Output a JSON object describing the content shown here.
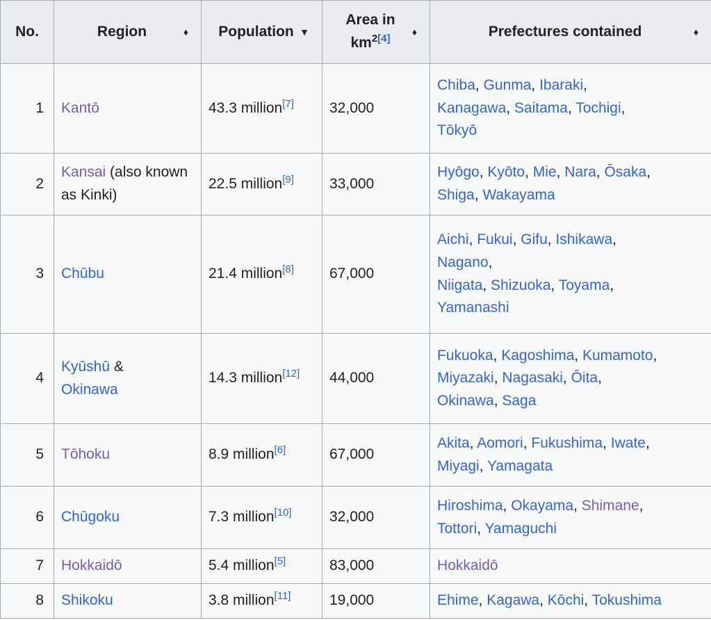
{
  "headers": {
    "no": "No.",
    "region": "Region",
    "population": "Population",
    "area": "Area in km",
    "area_sup": "2",
    "area_ref": "[4]",
    "prefectures": "Prefectures contained",
    "sort_both": "♦",
    "sort_desc": "▼"
  },
  "rows": [
    {
      "no": "1",
      "region": "Kantō",
      "population": "43.3 million",
      "pop_ref": "[7]",
      "area": "32,000",
      "prefs": [
        "Chiba",
        "Gunma",
        "Ibaraki",
        "Kanagawa",
        "Saitama",
        "Tochigi",
        "Tōkyō"
      ]
    },
    {
      "no": "2",
      "region": "Kansai",
      "region_note": " (also known as Kinki)",
      "population": "22.5 million",
      "pop_ref": "[9]",
      "area": "33,000",
      "prefs": [
        "Hyōgo",
        "Kyōto",
        "Mie",
        "Nara",
        "Ōsaka",
        "Shiga",
        "Wakayama"
      ]
    },
    {
      "no": "3",
      "region": "Chūbu",
      "population": "21.4 million",
      "pop_ref": "[8]",
      "area": "67,000",
      "prefs": [
        "Aichi",
        "Fukui",
        "Gifu",
        "Ishikawa",
        "Nagano",
        "Niigata",
        "Shizuoka",
        "Toyama",
        "Yamanashi"
      ]
    },
    {
      "no": "4",
      "region": "Kyūshū",
      "region_sep": " & ",
      "region2": "Okinawa",
      "population": "14.3 million",
      "pop_ref": "[12]",
      "area": "44,000",
      "prefs": [
        "Fukuoka",
        "Kagoshima",
        "Kumamoto",
        "Miyazaki",
        "Nagasaki",
        "Ōita",
        "Okinawa",
        "Saga"
      ]
    },
    {
      "no": "5",
      "region": "Tōhoku",
      "population": "8.9 million",
      "pop_ref": "[6]",
      "area": "67,000",
      "prefs": [
        "Akita",
        "Aomori",
        "Fukushima",
        "Iwate",
        "Miyagi",
        "Yamagata"
      ]
    },
    {
      "no": "6",
      "region": "Chūgoku",
      "population": "7.3 million",
      "pop_ref": "[10]",
      "area": "32,000",
      "prefs": [
        "Hiroshima",
        "Okayama",
        "Shimane",
        "Tottori",
        "Yamaguchi"
      ]
    },
    {
      "no": "7",
      "region": "Hokkaidō",
      "population": "5.4 million",
      "pop_ref": "[5]",
      "area": "83,000",
      "prefs": [
        "Hokkaidō"
      ]
    },
    {
      "no": "8",
      "region": "Shikoku",
      "population": "3.8 million",
      "pop_ref": "[11]",
      "area": "19,000",
      "prefs": [
        "Ehime",
        "Kagawa",
        "Kōchi",
        "Tokushima"
      ]
    }
  ],
  "colors": {
    "link": "#3366cc",
    "visited_link": "#795cb2",
    "header_bg": "#eaecf0",
    "cell_bg": "#f8f9fa",
    "border": "#a2a9b1"
  }
}
